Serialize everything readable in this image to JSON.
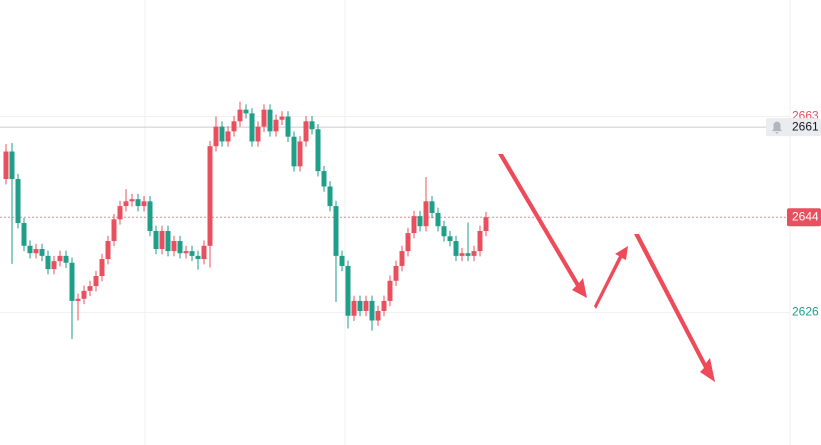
{
  "chart_data": {
    "type": "candlestick",
    "open": [
      2651.2,
      2656.4,
      2651.2,
      2642.9,
      2638.6,
      2637.2,
      2638.0,
      2636.7,
      2634.2,
      2635.7,
      2636.7,
      2635.4,
      2628.2,
      2628.6,
      2630.1,
      2631.0,
      2632.9,
      2636.1,
      2639.5,
      2643.6,
      2646.1,
      2647.0,
      2647.4,
      2646.1,
      2647.0,
      2641.4,
      2638.0,
      2641.4,
      2637.6,
      2639.5,
      2637.2,
      2637.6,
      2636.7,
      2636.1,
      2638.6,
      2657.4,
      2661.1,
      2658.3,
      2660.2,
      2662.1,
      2664.3,
      2663.6,
      2658.3,
      2661.1,
      2664.3,
      2660.2,
      2662.4,
      2663.0,
      2659.2,
      2653.6,
      2658.3,
      2662.1,
      2660.6,
      2652.7,
      2649.8,
      2646.1,
      2636.7,
      2634.8,
      2625.4,
      2628.2,
      2626.3,
      2628.2,
      2624.5,
      2626.3,
      2628.2,
      2632.0,
      2634.8,
      2637.6,
      2641.0,
      2644.2,
      2642.3,
      2647.0,
      2644.8,
      2642.3,
      2640.4,
      2639.5,
      2636.7,
      2637.2,
      2636.7,
      2637.6,
      2641.4
    ],
    "high": [
      2657.8,
      2658.0,
      2652.2,
      2643.9,
      2639.6,
      2639.0,
      2639.0,
      2637.7,
      2636.7,
      2637.7,
      2637.7,
      2636.4,
      2629.6,
      2631.1,
      2632.0,
      2633.9,
      2637.1,
      2640.5,
      2644.6,
      2647.1,
      2649.3,
      2648.4,
      2648.4,
      2648.0,
      2648.0,
      2642.4,
      2642.4,
      2642.4,
      2640.5,
      2640.5,
      2638.6,
      2638.6,
      2637.7,
      2639.6,
      2658.4,
      2663.0,
      2662.1,
      2661.2,
      2663.1,
      2665.8,
      2665.3,
      2664.6,
      2662.1,
      2665.3,
      2665.3,
      2663.4,
      2664.0,
      2664.0,
      2660.2,
      2659.3,
      2663.1,
      2663.1,
      2661.6,
      2653.7,
      2650.8,
      2647.1,
      2637.7,
      2635.8,
      2629.2,
      2629.2,
      2629.2,
      2629.2,
      2627.3,
      2629.2,
      2633.0,
      2635.8,
      2638.6,
      2642.0,
      2645.2,
      2645.2,
      2651.6,
      2648.0,
      2645.8,
      2643.3,
      2641.4,
      2640.5,
      2638.2,
      2643.0,
      2638.6,
      2642.4,
      2645.0
    ],
    "low": [
      2650.2,
      2635.2,
      2641.9,
      2637.6,
      2636.2,
      2636.2,
      2635.7,
      2633.2,
      2633.2,
      2634.7,
      2634.4,
      2621.0,
      2624.5,
      2627.6,
      2629.1,
      2630.0,
      2631.9,
      2635.1,
      2638.5,
      2642.6,
      2645.1,
      2646.0,
      2645.1,
      2645.1,
      2640.4,
      2637.0,
      2637.0,
      2636.6,
      2636.6,
      2636.2,
      2636.2,
      2635.7,
      2634.1,
      2635.1,
      2634.5,
      2656.4,
      2657.3,
      2657.3,
      2659.2,
      2661.1,
      2662.6,
      2657.3,
      2657.3,
      2660.1,
      2659.2,
      2659.2,
      2661.4,
      2658.2,
      2652.6,
      2652.6,
      2657.3,
      2659.6,
      2651.7,
      2648.8,
      2645.1,
      2628.0,
      2633.8,
      2623.0,
      2624.4,
      2625.3,
      2625.3,
      2622.6,
      2623.5,
      2625.3,
      2627.2,
      2631.0,
      2633.8,
      2636.6,
      2640.0,
      2641.3,
      2641.3,
      2643.8,
      2641.3,
      2639.4,
      2638.5,
      2635.7,
      2635.7,
      2635.7,
      2635.7,
      2636.6,
      2640.4
    ],
    "close": [
      2656.4,
      2651.2,
      2642.9,
      2638.6,
      2637.2,
      2638.0,
      2636.7,
      2634.2,
      2635.7,
      2636.7,
      2635.4,
      2628.2,
      2628.6,
      2630.1,
      2631.0,
      2632.9,
      2636.1,
      2639.5,
      2643.6,
      2646.1,
      2647.0,
      2647.4,
      2646.1,
      2647.0,
      2641.4,
      2638.0,
      2641.4,
      2637.6,
      2639.5,
      2637.2,
      2637.6,
      2636.7,
      2636.1,
      2638.6,
      2657.4,
      2661.1,
      2658.3,
      2660.2,
      2662.1,
      2664.3,
      2663.6,
      2658.3,
      2661.1,
      2664.3,
      2660.2,
      2662.4,
      2663.0,
      2659.2,
      2653.6,
      2658.3,
      2662.1,
      2660.6,
      2652.7,
      2649.8,
      2646.1,
      2636.7,
      2634.8,
      2625.4,
      2628.2,
      2626.3,
      2628.2,
      2624.5,
      2626.3,
      2628.2,
      2632.0,
      2634.8,
      2637.6,
      2641.0,
      2644.2,
      2642.3,
      2647.0,
      2644.8,
      2642.3,
      2640.4,
      2639.5,
      2636.7,
      2637.2,
      2636.7,
      2637.6,
      2641.4,
      2644.0
    ],
    "up_color": "#e8505f",
    "down_color": "#1f9e89",
    "ylim": [
      2601,
      2685
    ],
    "yticks": [
      2626,
      2663
    ],
    "grid": true,
    "alert_line": 2661,
    "last_price": 2644
  }
}
